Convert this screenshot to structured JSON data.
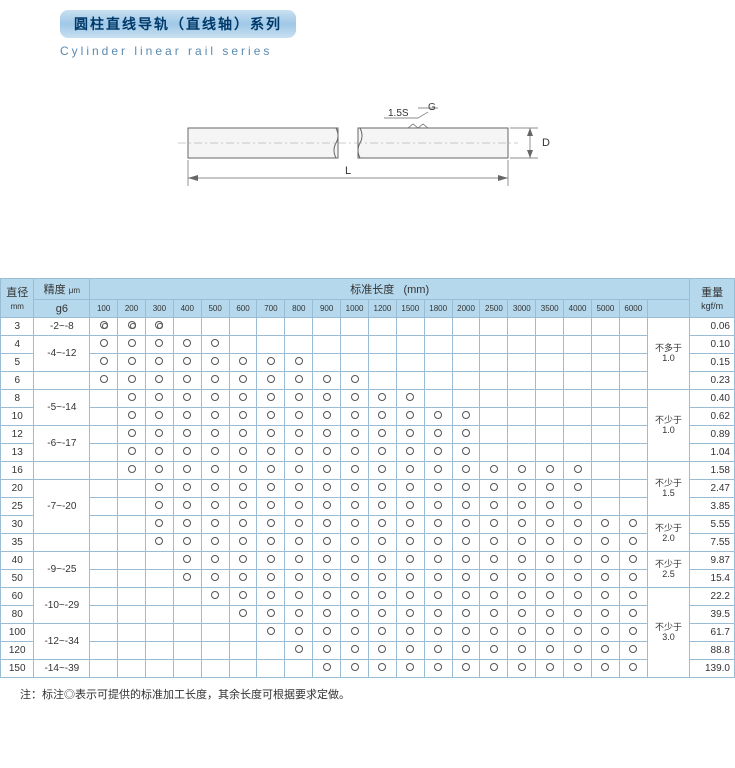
{
  "header": {
    "title_cn": "圆柱直线导轨（直线轴）系列",
    "title_en": "Cylinder linear rail series"
  },
  "diagram": {
    "marker_label": "1.5S",
    "g_label": "G",
    "d_label": "D",
    "l_label": "L"
  },
  "table": {
    "col_diameter": "直径",
    "col_diameter_unit": "mm",
    "col_precision": "精度",
    "col_precision_unit": "μm",
    "col_std_length": "标准长度",
    "col_std_length_unit": "(mm)",
    "col_g6": "g6",
    "col_weight": "重量",
    "col_weight_unit": "kgf/m",
    "lengths": [
      "100",
      "200",
      "300",
      "400",
      "500",
      "600",
      "700",
      "800",
      "900",
      "1000",
      "1200",
      "1500",
      "1800",
      "2000",
      "2500",
      "3000",
      "3500",
      "4000",
      "5000",
      "6000"
    ],
    "note_max_label": "不多于",
    "note_min_label": "不少于",
    "rows": [
      {
        "d": "3",
        "g6": "-2~-8",
        "marks": {
          "100": 2,
          "200": 2,
          "300": 2
        },
        "wt": "0.06"
      },
      {
        "d": "4",
        "g6": "",
        "marks": {
          "100": 1,
          "200": 1,
          "300": 1,
          "400": 1,
          "500": 1
        },
        "wt": "0.10"
      },
      {
        "d": "5",
        "g6": "-4~-12",
        "marks": {
          "100": 1,
          "200": 1,
          "300": 1,
          "400": 1,
          "500": 1,
          "600": 1,
          "700": 1,
          "800": 1
        },
        "wt": "0.15"
      },
      {
        "d": "6",
        "g6": "",
        "marks": {
          "100": 1,
          "200": 1,
          "300": 1,
          "400": 1,
          "500": 1,
          "600": 1,
          "700": 1,
          "800": 1,
          "900": 1,
          "1000": 1
        },
        "wt": "0.23"
      },
      {
        "d": "8",
        "g6": "-5~-14",
        "marks": {
          "200": 1,
          "300": 1,
          "400": 1,
          "500": 1,
          "600": 1,
          "700": 1,
          "800": 1,
          "900": 1,
          "1000": 1,
          "1200": 1,
          "1500": 1
        },
        "wt": "0.40"
      },
      {
        "d": "10",
        "g6": "",
        "marks": {
          "200": 1,
          "300": 1,
          "400": 1,
          "500": 1,
          "600": 1,
          "700": 1,
          "800": 1,
          "900": 1,
          "1000": 1,
          "1200": 1,
          "1500": 1,
          "1800": 1,
          "2000": 1
        },
        "wt": "0.62"
      },
      {
        "d": "12",
        "g6": "",
        "marks": {
          "200": 1,
          "300": 1,
          "400": 1,
          "500": 1,
          "600": 1,
          "700": 1,
          "800": 1,
          "900": 1,
          "1000": 1,
          "1200": 1,
          "1500": 1,
          "1800": 1,
          "2000": 1
        },
        "wt": "0.89"
      },
      {
        "d": "13",
        "g6": "-6~-17",
        "marks": {
          "200": 1,
          "300": 1,
          "400": 1,
          "500": 1,
          "600": 1,
          "700": 1,
          "800": 1,
          "900": 1,
          "1000": 1,
          "1200": 1,
          "1500": 1,
          "1800": 1,
          "2000": 1
        },
        "wt": "1.04"
      },
      {
        "d": "16",
        "g6": "",
        "marks": {
          "200": 1,
          "300": 1,
          "400": 1,
          "500": 1,
          "600": 1,
          "700": 1,
          "800": 1,
          "900": 1,
          "1000": 1,
          "1200": 1,
          "1500": 1,
          "1800": 1,
          "2000": 1,
          "2500": 1,
          "3000": 1,
          "3500": 1,
          "4000": 1
        },
        "wt": "1.58"
      },
      {
        "d": "20",
        "g6": "",
        "marks": {
          "300": 1,
          "400": 1,
          "500": 1,
          "600": 1,
          "700": 1,
          "800": 1,
          "900": 1,
          "1000": 1,
          "1200": 1,
          "1500": 1,
          "1800": 1,
          "2000": 1,
          "2500": 1,
          "3000": 1,
          "3500": 1,
          "4000": 1
        },
        "wt": "2.47"
      },
      {
        "d": "25",
        "g6": "-7~-20",
        "marks": {
          "300": 1,
          "400": 1,
          "500": 1,
          "600": 1,
          "700": 1,
          "800": 1,
          "900": 1,
          "1000": 1,
          "1200": 1,
          "1500": 1,
          "1800": 1,
          "2000": 1,
          "2500": 1,
          "3000": 1,
          "3500": 1,
          "4000": 1
        },
        "wt": "3.85"
      },
      {
        "d": "30",
        "g6": "",
        "marks": {
          "300": 1,
          "400": 1,
          "500": 1,
          "600": 1,
          "700": 1,
          "800": 1,
          "900": 1,
          "1000": 1,
          "1200": 1,
          "1500": 1,
          "1800": 1,
          "2000": 1,
          "2500": 1,
          "3000": 1,
          "3500": 1,
          "4000": 1,
          "5000": 1,
          "6000": 1
        },
        "wt": "5.55"
      },
      {
        "d": "35",
        "g6": "",
        "marks": {
          "300": 1,
          "400": 1,
          "500": 1,
          "600": 1,
          "700": 1,
          "800": 1,
          "900": 1,
          "1000": 1,
          "1200": 1,
          "1500": 1,
          "1800": 1,
          "2000": 1,
          "2500": 1,
          "3000": 1,
          "3500": 1,
          "4000": 1,
          "5000": 1,
          "6000": 1
        },
        "wt": "7.55"
      },
      {
        "d": "40",
        "g6": "-9~-25",
        "marks": {
          "400": 1,
          "500": 1,
          "600": 1,
          "700": 1,
          "800": 1,
          "900": 1,
          "1000": 1,
          "1200": 1,
          "1500": 1,
          "1800": 1,
          "2000": 1,
          "2500": 1,
          "3000": 1,
          "3500": 1,
          "4000": 1,
          "5000": 1,
          "6000": 1
        },
        "wt": "9.87"
      },
      {
        "d": "50",
        "g6": "",
        "marks": {
          "400": 1,
          "500": 1,
          "600": 1,
          "700": 1,
          "800": 1,
          "900": 1,
          "1000": 1,
          "1200": 1,
          "1500": 1,
          "1800": 1,
          "2000": 1,
          "2500": 1,
          "3000": 1,
          "3500": 1,
          "4000": 1,
          "5000": 1,
          "6000": 1
        },
        "wt": "15.4"
      },
      {
        "d": "60",
        "g6": "-10~-29",
        "marks": {
          "500": 1,
          "600": 1,
          "700": 1,
          "800": 1,
          "900": 1,
          "1000": 1,
          "1200": 1,
          "1500": 1,
          "1800": 1,
          "2000": 1,
          "2500": 1,
          "3000": 1,
          "3500": 1,
          "4000": 1,
          "5000": 1,
          "6000": 1
        },
        "wt": "22.2"
      },
      {
        "d": "80",
        "g6": "",
        "marks": {
          "600": 1,
          "700": 1,
          "800": 1,
          "900": 1,
          "1000": 1,
          "1200": 1,
          "1500": 1,
          "1800": 1,
          "2000": 1,
          "2500": 1,
          "3000": 1,
          "3500": 1,
          "4000": 1,
          "5000": 1,
          "6000": 1
        },
        "wt": "39.5"
      },
      {
        "d": "100",
        "g6": "-12~-34",
        "marks": {
          "700": 1,
          "800": 1,
          "900": 1,
          "1000": 1,
          "1200": 1,
          "1500": 1,
          "1800": 1,
          "2000": 1,
          "2500": 1,
          "3000": 1,
          "3500": 1,
          "4000": 1,
          "5000": 1,
          "6000": 1
        },
        "wt": "61.7"
      },
      {
        "d": "120",
        "g6": "",
        "marks": {
          "800": 1,
          "900": 1,
          "1000": 1,
          "1200": 1,
          "1500": 1,
          "1800": 1,
          "2000": 1,
          "2500": 1,
          "3000": 1,
          "3500": 1,
          "4000": 1,
          "5000": 1,
          "6000": 1
        },
        "wt": "88.8"
      },
      {
        "d": "150",
        "g6": "-14~-39",
        "marks": {
          "900": 1,
          "1000": 1,
          "1200": 1,
          "1500": 1,
          "1800": 1,
          "2000": 1,
          "2500": 1,
          "3000": 1,
          "3500": 1,
          "4000": 1,
          "5000": 1,
          "6000": 1
        },
        "wt": "139.0"
      }
    ],
    "g6_spans": [
      {
        "start": 0,
        "span": 1,
        "val": "-2~-8"
      },
      {
        "start": 1,
        "span": 2,
        "val": "-4~-12"
      },
      {
        "start": 3,
        "span": 1,
        "val": ""
      },
      {
        "start": 4,
        "span": 2,
        "val": "-5~-14"
      },
      {
        "start": 6,
        "span": 2,
        "val": "-6~-17"
      },
      {
        "start": 8,
        "span": 1,
        "val": ""
      },
      {
        "start": 9,
        "span": 3,
        "val": "-7~-20"
      },
      {
        "start": 12,
        "span": 1,
        "val": ""
      },
      {
        "start": 13,
        "span": 2,
        "val": "-9~-25"
      },
      {
        "start": 15,
        "span": 2,
        "val": "-10~-29"
      },
      {
        "start": 17,
        "span": 2,
        "val": "-12~-34"
      },
      {
        "start": 19,
        "span": 1,
        "val": "-14~-39"
      }
    ],
    "note_spans": [
      {
        "start": 0,
        "span": 4,
        "label": "不多于",
        "val": "1.0"
      },
      {
        "start": 4,
        "span": 4,
        "label": "不少于",
        "val": "1.0"
      },
      {
        "start": 8,
        "span": 3,
        "label": "不少于",
        "val": "1.5"
      },
      {
        "start": 11,
        "span": 2,
        "label": "不少于",
        "val": "2.0"
      },
      {
        "start": 13,
        "span": 2,
        "label": "不少于",
        "val": "2.5"
      },
      {
        "start": 15,
        "span": 5,
        "label": "不少于",
        "val": "3.0"
      }
    ]
  },
  "footnote": "注：标注◎表示可提供的标准加工长度，其余长度可根据要求定做。"
}
